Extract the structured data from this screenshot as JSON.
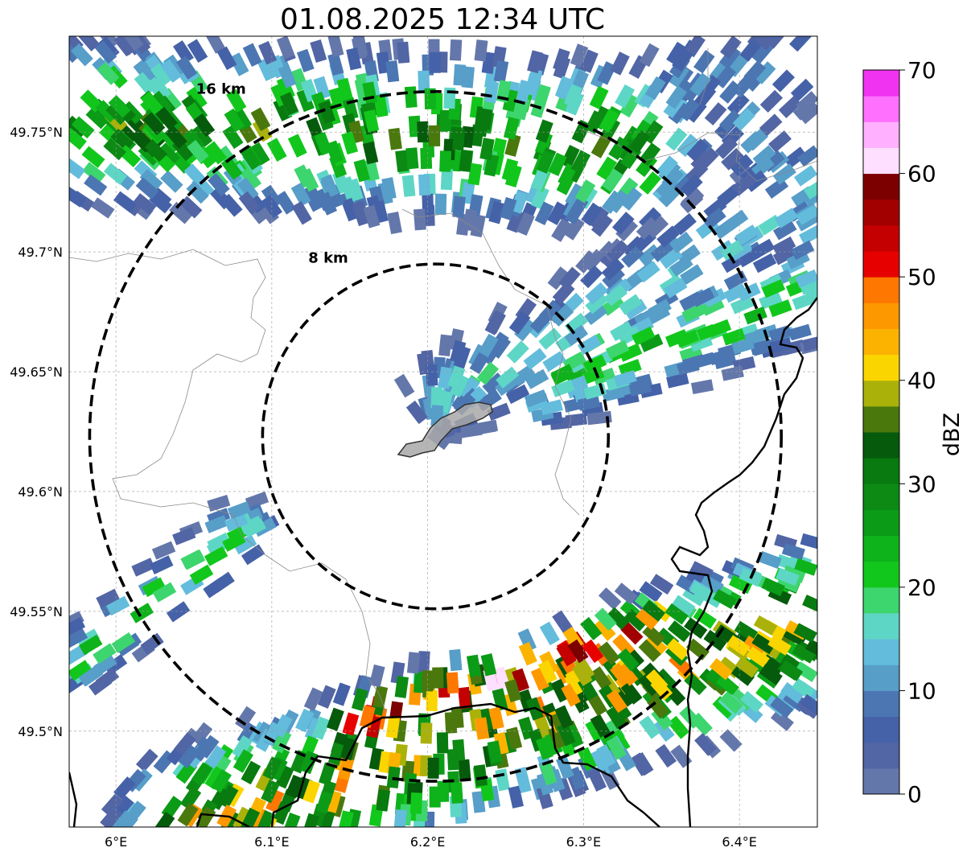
{
  "title": "01.08.2025 12:34 UTC",
  "map": {
    "lon_range": [
      5.97,
      6.45
    ],
    "lat_range": [
      49.46,
      49.79
    ],
    "lon_ticks": [
      {
        "value": 6.0,
        "label": "6°E"
      },
      {
        "value": 6.1,
        "label": "6.1°E"
      },
      {
        "value": 6.2,
        "label": "6.2°E"
      },
      {
        "value": 6.3,
        "label": "6.3°E"
      },
      {
        "value": 6.4,
        "label": "6.4°E"
      }
    ],
    "lat_ticks": [
      {
        "value": 49.5,
        "label": "49.5°N"
      },
      {
        "value": 49.55,
        "label": "49.55°N"
      },
      {
        "value": 49.6,
        "label": "49.6°N"
      },
      {
        "value": 49.65,
        "label": "49.65°N"
      },
      {
        "value": 49.7,
        "label": "49.7°N"
      },
      {
        "value": 49.75,
        "label": "49.75°N"
      }
    ],
    "gridlines": true,
    "range_rings": [
      {
        "label": "8 km",
        "radius_km": 8
      },
      {
        "label": "16 km",
        "radius_km": 16
      }
    ],
    "center": {
      "lon": 6.205,
      "lat": 49.623
    }
  },
  "colorbar": {
    "label": "dBZ",
    "min": 0,
    "max": 70,
    "step": 2.5,
    "tick_labels": [
      "0",
      "10",
      "20",
      "30",
      "40",
      "50",
      "60",
      "70"
    ],
    "colors": [
      "#6477ab",
      "#5265a4",
      "#4562a8",
      "#4b76b2",
      "#579ec9",
      "#63bcdb",
      "#5ed6c6",
      "#3dd56e",
      "#12c71c",
      "#0eb21a",
      "#0b9b17",
      "#0c8a14",
      "#087a0f",
      "#055a0c",
      "#4a780d",
      "#aab20a",
      "#fbd500",
      "#fcb300",
      "#fe9800",
      "#fe7700",
      "#e60000",
      "#c40000",
      "#a20000",
      "#7c0000",
      "#ffdfff",
      "#ffb0ff",
      "#ff70ff",
      "#f033f0"
    ]
  }
}
